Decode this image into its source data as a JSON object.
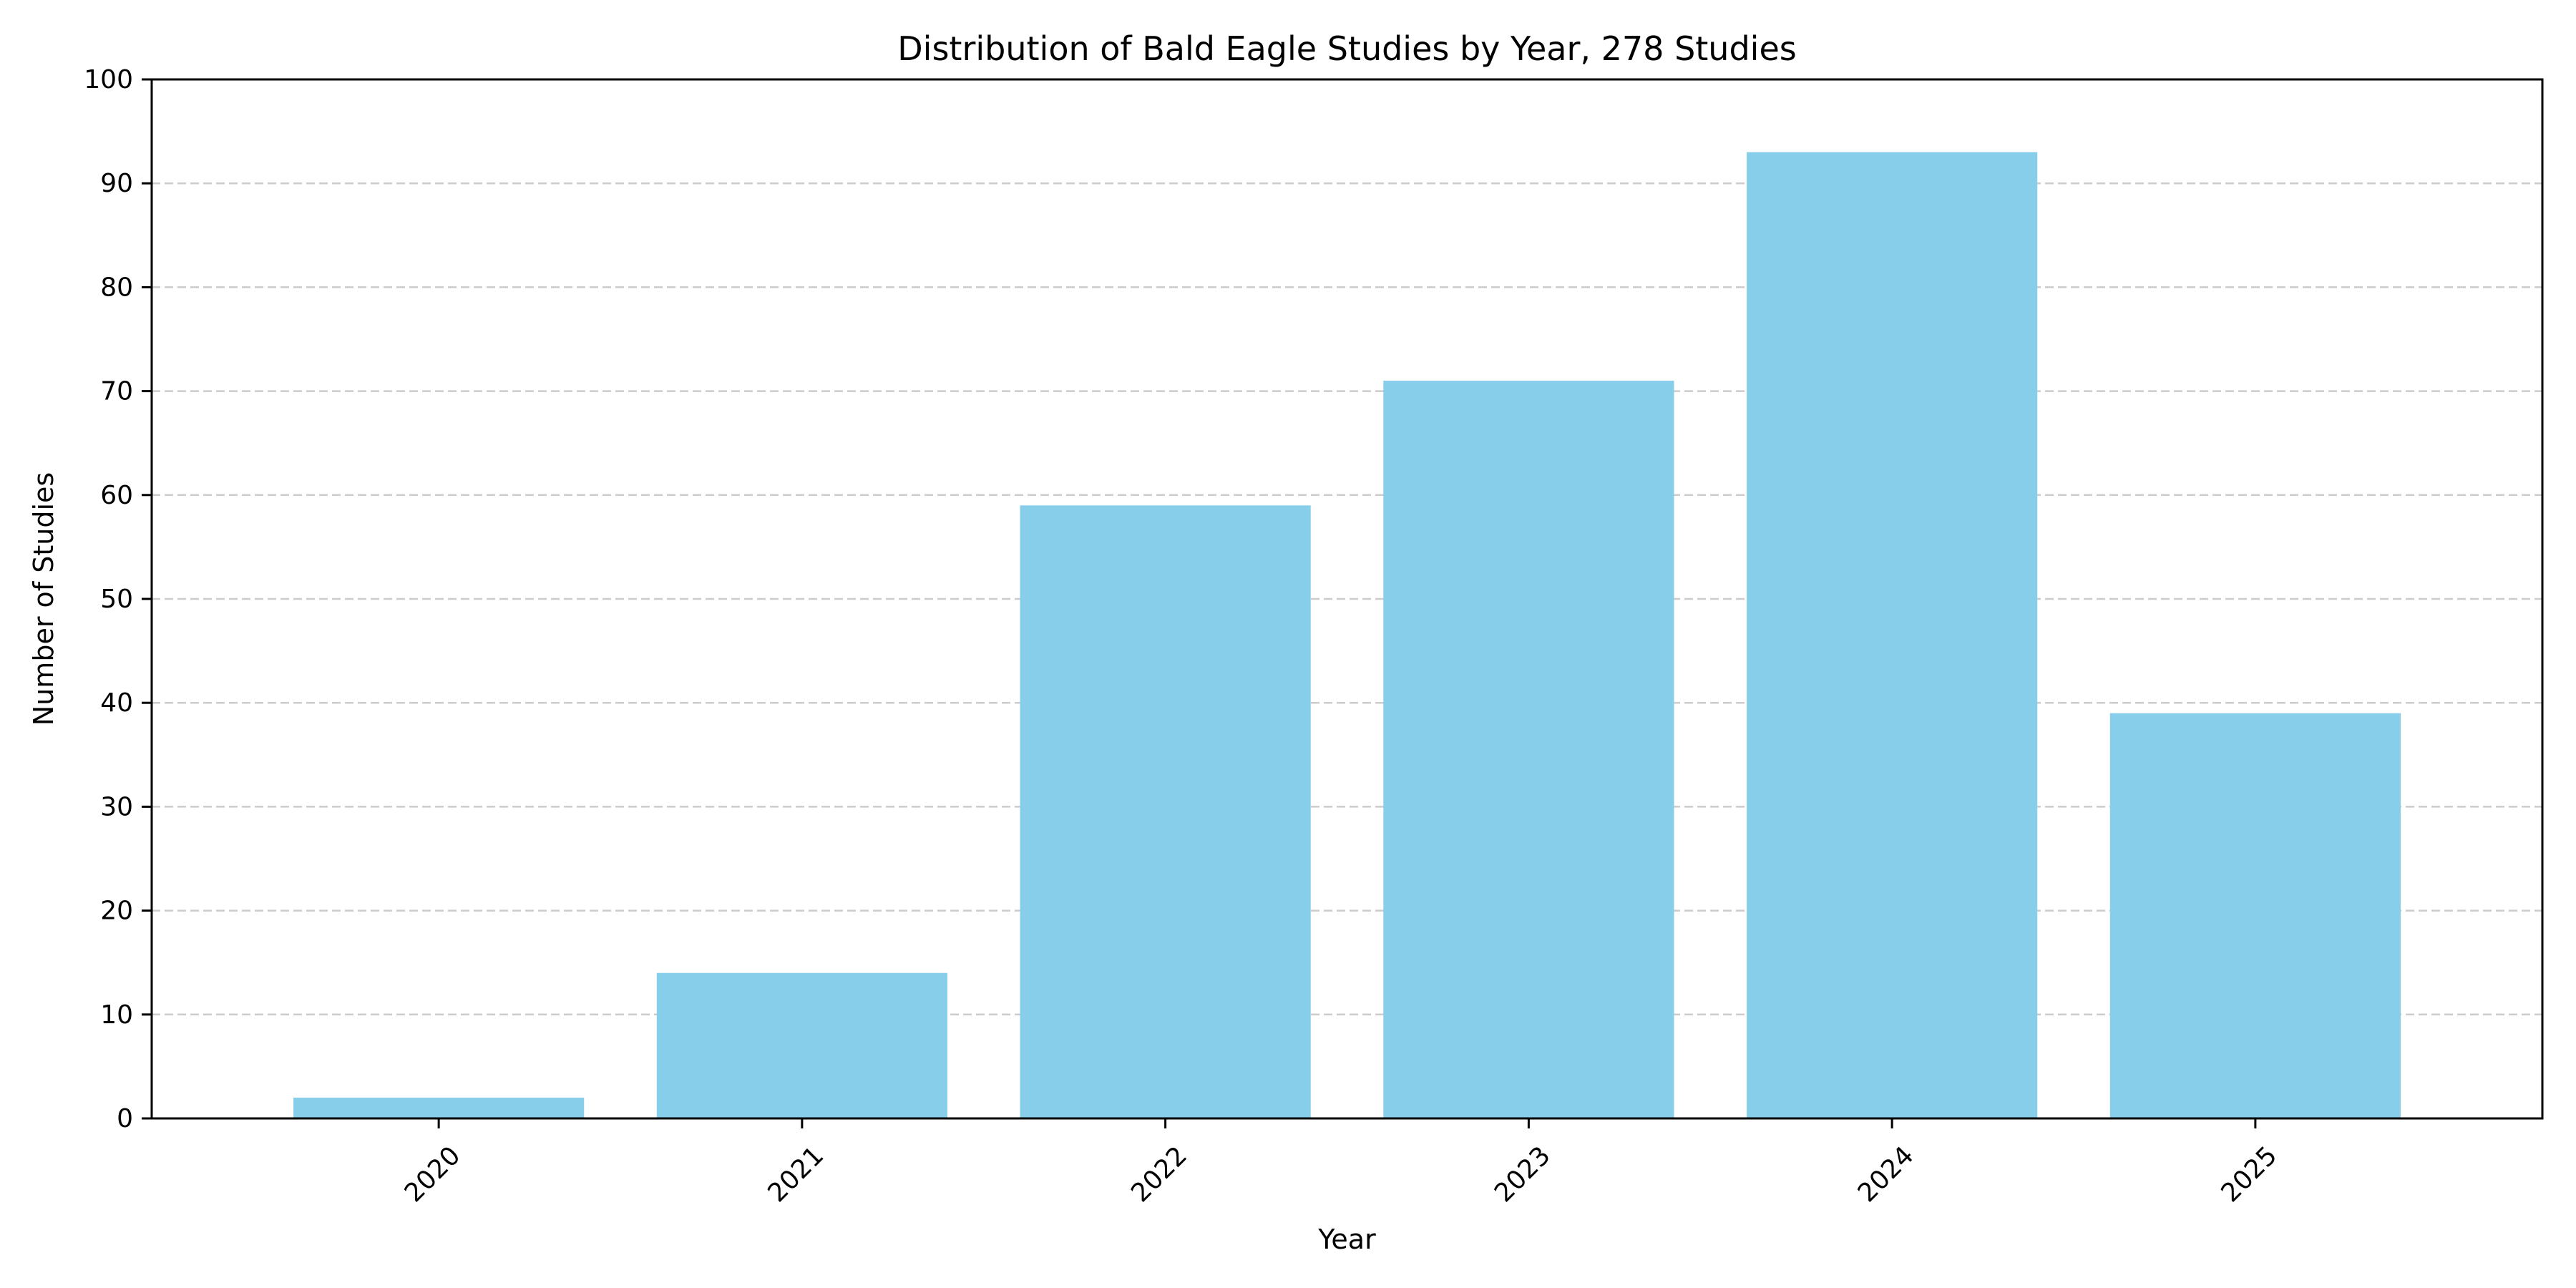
{
  "chart_data": {
    "type": "bar",
    "title": "Distribution of Bald Eagle Studies by Year, 278 Studies",
    "xlabel": "Year",
    "ylabel": "Number of Studies",
    "categories": [
      "2020",
      "2021",
      "2022",
      "2023",
      "2024",
      "2025"
    ],
    "values": [
      2,
      14,
      59,
      71,
      93,
      39
    ],
    "ylim": [
      0,
      100
    ],
    "yticks": [
      0,
      10,
      20,
      30,
      40,
      50,
      60,
      70,
      80,
      90,
      100
    ],
    "xtick_rotation_deg": 45,
    "grid": {
      "axis": "y",
      "style": "dashed",
      "color": "#cccccc"
    },
    "legend": "none",
    "colors": {
      "bar": "#87ceeb",
      "axis": "#000000",
      "background": "#ffffff"
    }
  }
}
